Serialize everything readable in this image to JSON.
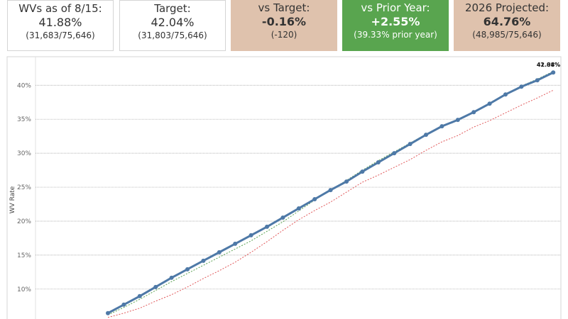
{
  "cards": [
    {
      "title": "WVs as of 8/15:",
      "value": "41.88%",
      "sub": "(31,683/75,646)"
    },
    {
      "title": "Target:",
      "value": "42.04%",
      "sub": "(31,803/75,646)"
    },
    {
      "title": "vs Target:",
      "value": "-0.16%",
      "sub": "(-120)"
    },
    {
      "title": "vs Prior Year:",
      "value": "+2.55%",
      "sub": "(39.33% prior year)"
    },
    {
      "title": "2026 Projected:",
      "value": "64.76%",
      "sub": "(48,985/75,646)"
    }
  ],
  "chart_data": {
    "type": "line",
    "y_label": "WV Rate",
    "categories": [
      null,
      null,
      null,
      null,
      null,
      null,
      null,
      null,
      null,
      null,
      null,
      null,
      null,
      null,
      null,
      null,
      null,
      null,
      null,
      null,
      null,
      null,
      null,
      null,
      null,
      null,
      null,
      null,
      null
    ],
    "series": [
      {
        "color": "#4e79a7",
        "values": [
          6.46,
          7.71,
          8.96,
          10.31,
          11.67,
          12.92,
          14.17,
          15.42,
          16.67,
          17.92,
          19.17,
          20.52,
          21.88,
          23.23,
          24.58,
          25.83,
          27.29,
          28.65,
          30.0,
          31.35,
          32.71,
          33.96,
          34.9,
          36.04,
          37.29,
          38.65,
          39.79,
          40.73,
          41.88
        ],
        "value_labels": [
          null,
          null,
          null,
          null,
          null,
          null,
          null,
          null,
          null,
          null,
          null,
          null,
          null,
          null,
          null,
          null,
          null,
          null,
          null,
          null,
          null,
          null,
          null,
          null,
          null,
          null,
          null,
          null,
          "41.88%"
        ]
      },
      {
        "color": "#59a14f",
        "values": [
          6.2,
          7.3,
          8.5,
          9.8,
          11.1,
          12.3,
          13.5,
          14.7,
          15.9,
          17.1,
          18.5,
          19.9,
          21.5,
          23.1,
          24.6,
          26.0,
          27.5,
          28.9,
          30.2,
          31.5,
          32.8,
          34.0,
          35.0,
          36.1,
          37.4,
          38.7,
          39.9,
          40.9,
          42.04
        ],
        "value_labels": [
          null,
          null,
          null,
          null,
          null,
          null,
          null,
          null,
          null,
          null,
          null,
          null,
          null,
          null,
          null,
          null,
          null,
          null,
          null,
          null,
          null,
          null,
          null,
          null,
          null,
          null,
          null,
          null,
          "42.04%"
        ]
      },
      {
        "color": "#e15759",
        "values": [
          5.83,
          6.46,
          7.19,
          8.23,
          9.17,
          10.31,
          11.56,
          12.71,
          13.96,
          15.42,
          16.98,
          18.65,
          20.21,
          21.56,
          22.81,
          24.27,
          25.73,
          26.77,
          27.92,
          29.06,
          30.42,
          31.67,
          32.6,
          33.85,
          34.79,
          35.94,
          37.08,
          38.13,
          39.27
        ]
      }
    ],
    "ylim": [
      5.6,
      44.2
    ],
    "yticks": [
      {
        "value": 10,
        "label": "10%"
      },
      {
        "value": 15,
        "label": "15%"
      },
      {
        "value": 20,
        "label": "20%"
      },
      {
        "value": 25,
        "label": "25%"
      },
      {
        "value": 30,
        "label": "30%"
      },
      {
        "value": 35,
        "label": "35%"
      },
      {
        "value": 40,
        "label": "40%"
      }
    ],
    "grid": true
  }
}
